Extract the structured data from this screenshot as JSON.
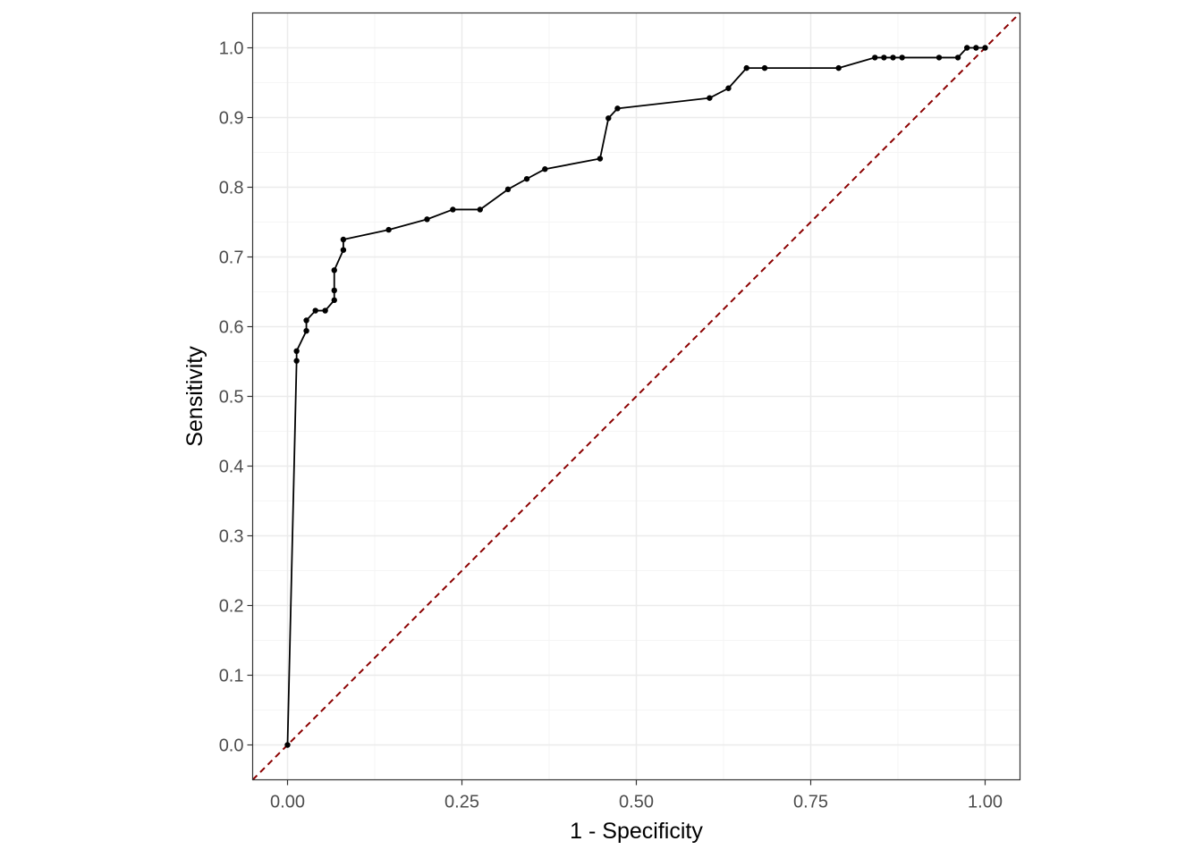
{
  "chart_data": {
    "type": "line",
    "title": "",
    "xlabel": "1 - Specificity",
    "ylabel": "Sensitivity",
    "xlim": [
      -0.05,
      1.05
    ],
    "ylim": [
      -0.05,
      1.05
    ],
    "x_ticks": [
      0.0,
      0.25,
      0.5,
      0.75,
      1.0
    ],
    "x_tick_labels": [
      "0.00",
      "0.25",
      "0.50",
      "0.75",
      "1.00"
    ],
    "y_ticks": [
      0.0,
      0.1,
      0.2,
      0.3,
      0.4,
      0.5,
      0.6,
      0.7,
      0.8,
      0.9,
      1.0
    ],
    "y_tick_labels": [
      "0.0",
      "0.1",
      "0.2",
      "0.3",
      "0.4",
      "0.5",
      "0.6",
      "0.7",
      "0.8",
      "0.9",
      "1.0"
    ],
    "grid": true,
    "legend": "none",
    "colors": {
      "curve": "#000000",
      "reference": "#8b0000",
      "grid_major": "#ebebeb",
      "grid_minor": "#f5f5f5",
      "panel_border": "#333333"
    },
    "series": [
      {
        "x": [
          0.0,
          0.013,
          0.013,
          0.027,
          0.027,
          0.04,
          0.054,
          0.067,
          0.067,
          0.067,
          0.08,
          0.08,
          0.145,
          0.2,
          0.237,
          0.276,
          0.316,
          0.343,
          0.369,
          0.448,
          0.46,
          0.473,
          0.605,
          0.632,
          0.658,
          0.684,
          0.79,
          0.842,
          0.855,
          0.868,
          0.881,
          0.934,
          0.961,
          0.974,
          0.987,
          1.0
        ],
        "y": [
          0.0,
          0.551,
          0.565,
          0.594,
          0.609,
          0.623,
          0.623,
          0.638,
          0.652,
          0.681,
          0.71,
          0.725,
          0.739,
          0.754,
          0.768,
          0.768,
          0.797,
          0.812,
          0.826,
          0.841,
          0.899,
          0.913,
          0.928,
          0.942,
          0.971,
          0.971,
          0.971,
          0.986,
          0.986,
          0.986,
          0.986,
          0.986,
          0.986,
          1.0,
          1.0,
          1.0
        ]
      }
    ],
    "reference_line": {
      "x": [
        -0.05,
        1.05
      ],
      "y": [
        -0.05,
        1.05
      ]
    }
  }
}
